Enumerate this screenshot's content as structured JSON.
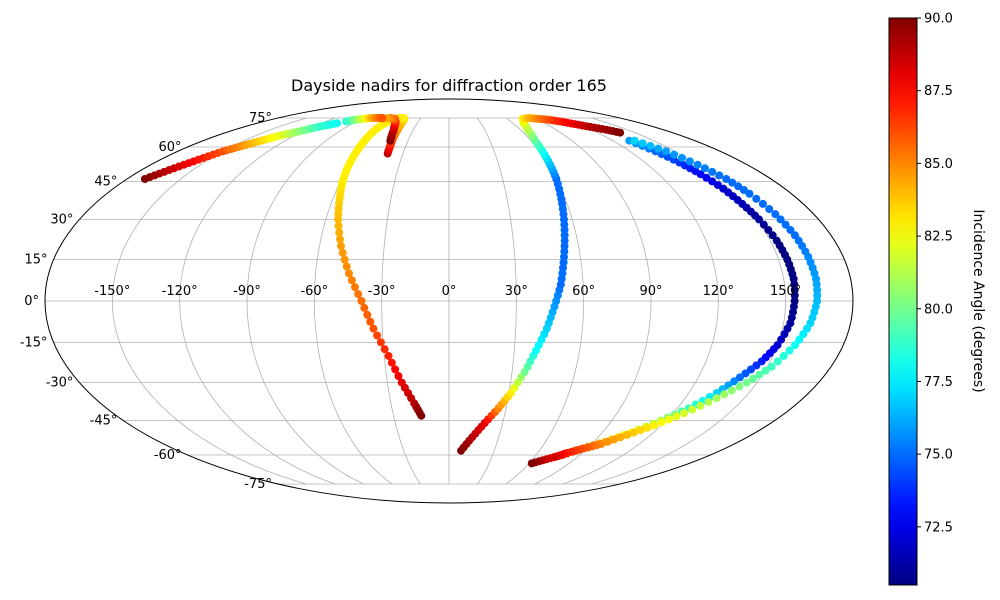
{
  "chart_data": {
    "type": "scatter",
    "projection": "mollweide",
    "title": "Dayside nadirs for diffraction order 165",
    "lon_ticks": [
      "-150°",
      "-120°",
      "-90°",
      "-60°",
      "-30°",
      "0°",
      "30°",
      "60°",
      "90°",
      "120°",
      "150°"
    ],
    "lat_ticks": [
      "75°",
      "60°",
      "45°",
      "30°",
      "15°",
      "0°",
      "-15°",
      "-30°",
      "-45°",
      "-60°",
      "-75°"
    ],
    "grid": true,
    "colorbar": {
      "label": "Incidence Angle (degrees)",
      "min": 70.5,
      "max": 90.0,
      "ticks": [
        "72.5",
        "75.0",
        "77.5",
        "80.0",
        "82.5",
        "85.0",
        "87.5",
        "90.0"
      ],
      "colormap": "jet"
    },
    "series": [
      {
        "points": [
          [
            -40,
            57,
            89
          ],
          [
            -41,
            61,
            87
          ],
          [
            -42,
            64,
            86
          ],
          [
            -43,
            68,
            85
          ],
          [
            -44,
            71,
            84
          ],
          [
            -45,
            73,
            84
          ],
          [
            -46,
            74.5,
            83.5
          ],
          [
            -48,
            75,
            83
          ],
          [
            -52,
            75,
            83
          ],
          [
            -56,
            74,
            83.5
          ],
          [
            -59,
            73,
            83
          ],
          [
            -61,
            71,
            83
          ],
          [
            -62,
            68,
            83
          ],
          [
            -62,
            64,
            83
          ],
          [
            -61.5,
            60,
            83
          ],
          [
            -61,
            56,
            83
          ],
          [
            -60,
            50,
            83
          ],
          [
            -58.5,
            44,
            83
          ],
          [
            -56.5,
            38,
            83.5
          ],
          [
            -54,
            30,
            84
          ],
          [
            -50,
            20,
            84.5
          ],
          [
            -45,
            10,
            85
          ],
          [
            -39,
            0,
            85.5
          ],
          [
            -34,
            -10,
            86
          ],
          [
            -28,
            -20,
            87
          ],
          [
            -23,
            -30,
            88
          ],
          [
            -18,
            -38,
            89
          ],
          [
            -15,
            -43,
            90
          ]
        ]
      },
      {
        "points": [
          [
            -43,
            63,
            90
          ],
          [
            -46,
            68,
            89
          ],
          [
            -49,
            71,
            88
          ],
          [
            -52,
            73,
            87
          ],
          [
            -56,
            74.5,
            86
          ],
          [
            -62,
            75,
            85
          ],
          [
            -68,
            74.5,
            84
          ]
        ]
      },
      {
        "points": [
          [
            -170,
            46,
            90
          ],
          [
            -165,
            49,
            89
          ],
          [
            -160,
            52,
            88
          ],
          [
            -155,
            55,
            87
          ],
          [
            -150,
            58,
            86
          ],
          [
            -145,
            60,
            85
          ],
          [
            -140,
            62,
            84
          ],
          [
            -135,
            64,
            83
          ],
          [
            -130,
            66,
            82
          ],
          [
            -125,
            67,
            81
          ],
          [
            -120,
            68.5,
            80
          ],
          [
            -115,
            70,
            79
          ],
          [
            -110,
            71,
            78.5
          ],
          [
            -105,
            72,
            78
          ]
        ]
      },
      {
        "points": [
          [
            -100,
            73,
            78.5
          ],
          [
            -95,
            74,
            80
          ],
          [
            -88,
            74.5,
            82
          ],
          [
            -82,
            75,
            84
          ],
          [
            -76,
            75,
            85
          ],
          [
            -70,
            75,
            86
          ]
        ]
      },
      {
        "points": [
          [
            8,
            -58,
            90
          ],
          [
            14,
            -52,
            89
          ],
          [
            20,
            -46,
            88
          ],
          [
            26,
            -40,
            85
          ],
          [
            31,
            -34,
            83
          ],
          [
            36,
            -26,
            80
          ],
          [
            40,
            -18,
            78
          ],
          [
            44,
            -10,
            77
          ],
          [
            47,
            -2,
            76
          ],
          [
            50,
            6,
            75
          ],
          [
            52,
            14,
            75
          ],
          [
            54,
            22,
            75
          ],
          [
            56,
            30,
            75
          ],
          [
            58,
            38,
            75
          ],
          [
            60,
            46,
            75
          ],
          [
            61,
            52,
            76.5
          ],
          [
            62,
            58,
            78
          ],
          [
            63,
            63,
            79.5
          ],
          [
            66,
            68,
            81
          ],
          [
            70,
            72,
            82
          ],
          [
            76,
            74.5,
            83
          ],
          [
            84,
            75,
            84
          ],
          [
            92,
            74.5,
            85
          ],
          [
            100,
            74,
            86
          ],
          [
            108,
            73,
            87
          ],
          [
            116,
            71.5,
            88
          ],
          [
            124,
            70,
            89
          ],
          [
            132,
            68.5,
            89.5
          ],
          [
            138,
            67,
            90
          ]
        ]
      },
      {
        "points": [
          [
            132,
            63,
            76
          ],
          [
            137,
            58,
            75
          ],
          [
            141,
            53,
            74
          ],
          [
            144,
            48,
            73
          ],
          [
            147,
            42,
            72
          ],
          [
            149,
            36,
            71.5
          ],
          [
            151,
            30,
            71
          ],
          [
            153,
            22,
            70.5
          ],
          [
            154,
            15,
            70.5
          ],
          [
            154.5,
            8,
            70.5
          ],
          [
            154,
            0,
            70.5
          ],
          [
            153,
            -8,
            71
          ],
          [
            150,
            -16,
            72
          ],
          [
            146,
            -22,
            73.5
          ],
          [
            140,
            -28,
            75
          ],
          [
            134,
            -34,
            77
          ],
          [
            126,
            -40,
            79
          ],
          [
            117,
            -45,
            81
          ],
          [
            107,
            -50,
            82.5
          ],
          [
            97,
            -54,
            84
          ],
          [
            87,
            -57,
            85.5
          ],
          [
            78,
            -60,
            87
          ],
          [
            70,
            -62,
            88.5
          ],
          [
            62,
            -64,
            90
          ]
        ]
      },
      {
        "points": [
          [
            136,
            63,
            77
          ],
          [
            144,
            58,
            76
          ],
          [
            150,
            52,
            75.5
          ],
          [
            155,
            46,
            75
          ],
          [
            158,
            40,
            75
          ],
          [
            161,
            32,
            75
          ],
          [
            163,
            24,
            75
          ],
          [
            164,
            16,
            75.5
          ],
          [
            164.5,
            8,
            76
          ],
          [
            164,
            0,
            76.5
          ],
          [
            162,
            -8,
            77
          ],
          [
            158,
            -16,
            78
          ],
          [
            152,
            -24,
            79
          ],
          [
            145,
            -30,
            80
          ],
          [
            136,
            -36,
            81
          ],
          [
            126,
            -42,
            82
          ],
          [
            116,
            -47,
            83
          ],
          [
            106,
            -51,
            84
          ],
          [
            96,
            -55,
            85
          ],
          [
            88,
            -57,
            86
          ],
          [
            80,
            -59,
            87
          ],
          [
            74,
            -61,
            88.5
          ]
        ]
      }
    ]
  }
}
